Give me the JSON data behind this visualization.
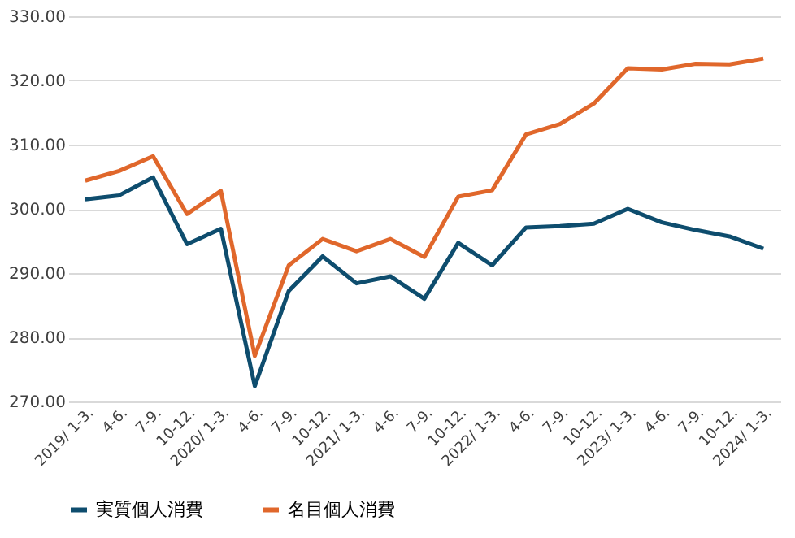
{
  "chart_data": {
    "type": "line",
    "categories": [
      "2019/ 1-3.",
      "4-6.",
      "7-9.",
      "10-12.",
      "2020/ 1-3.",
      "4-6.",
      "7-9.",
      "10-12.",
      "2021/ 1-3.",
      "4-6.",
      "7-9.",
      "10-12.",
      "2022/ 1-3.",
      "4-6.",
      "7-9.",
      "10-12.",
      "2023/ 1-3.",
      "4-6.",
      "7-9.",
      "10-12.",
      "2024/ 1-3."
    ],
    "series": [
      {
        "name": "実質個人消費",
        "color": "#0e4d6e",
        "values": [
          301.5,
          302.1,
          304.9,
          294.5,
          296.9,
          272.4,
          287.2,
          292.6,
          288.4,
          289.5,
          286.0,
          294.7,
          291.2,
          297.1,
          297.3,
          297.7,
          300.0,
          297.9,
          296.7,
          295.7,
          293.8
        ]
      },
      {
        "name": "名目個人消費",
        "color": "#e0672b",
        "values": [
          304.4,
          305.9,
          308.2,
          299.2,
          302.8,
          277.1,
          291.2,
          295.3,
          293.4,
          295.3,
          292.5,
          301.9,
          302.9,
          311.6,
          313.2,
          316.4,
          321.9,
          321.7,
          322.6,
          322.5,
          323.4
        ]
      }
    ],
    "ylim": [
      270,
      330
    ],
    "yticks": [
      {
        "value": 270,
        "label": "270.00"
      },
      {
        "value": 280,
        "label": "280.00"
      },
      {
        "value": 290,
        "label": "290.00"
      },
      {
        "value": 300,
        "label": "300.00"
      },
      {
        "value": 310,
        "label": "310.00"
      },
      {
        "value": 320,
        "label": "320.00"
      },
      {
        "value": 330,
        "label": "330.00"
      }
    ],
    "grid": "y",
    "legend": "bottom",
    "marker": "none",
    "line_style": "solid"
  }
}
